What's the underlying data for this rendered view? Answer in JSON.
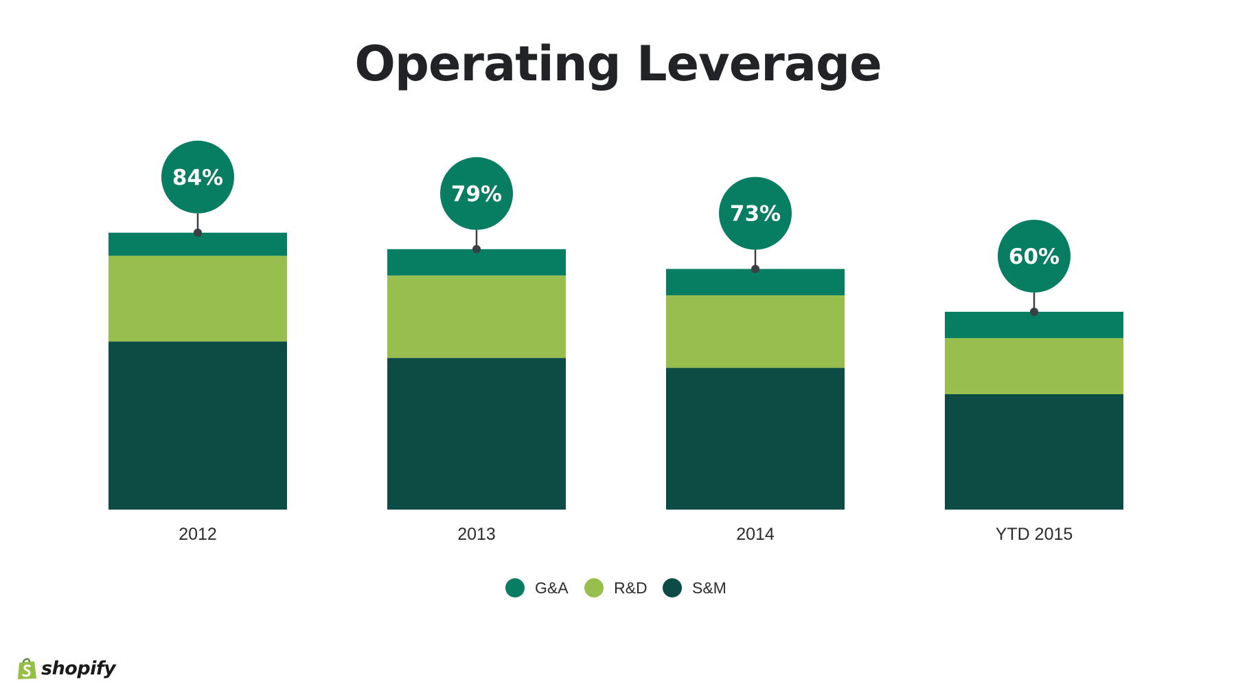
{
  "title": "Operating Leverage",
  "brand": {
    "name": "shopify",
    "bag_color": "#95bf47"
  },
  "colors": {
    "ga": "#077d62",
    "rd": "#98bf4d",
    "sm": "#0c4c44",
    "connector": "#3a3f44"
  },
  "chart_data": {
    "type": "bar",
    "stacked": true,
    "title": "Operating Leverage",
    "xlabel": "",
    "ylabel": "",
    "ylim": [
      0,
      100
    ],
    "grid": false,
    "legend": "bottom-center",
    "categories": [
      "2012",
      "2013",
      "2014",
      "YTD 2015"
    ],
    "series": [
      {
        "name": "S&M",
        "key": "sm",
        "values": [
          51,
          46,
          43,
          35
        ]
      },
      {
        "name": "R&D",
        "key": "rd",
        "values": [
          26,
          25,
          22,
          17
        ]
      },
      {
        "name": "G&A",
        "key": "ga",
        "values": [
          7,
          8,
          8,
          8
        ]
      }
    ],
    "totals": [
      84,
      79,
      73,
      60
    ],
    "total_labels": [
      "84%",
      "79%",
      "73%",
      "60%"
    ],
    "legend_entries": [
      "G&A",
      "R&D",
      "S&M"
    ]
  }
}
